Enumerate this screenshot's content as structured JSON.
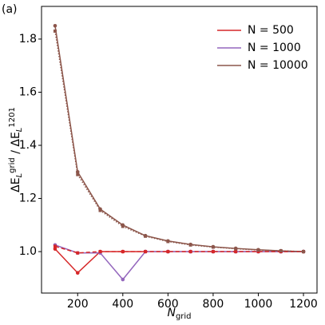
{
  "chart_data": {
    "type": "line",
    "panel_label": "(a)",
    "x_label": [
      "N",
      "grid"
    ],
    "y_label": [
      "ΔE",
      "L",
      "grid",
      " / ΔE",
      "L",
      "1201"
    ],
    "x": [
      100,
      200,
      300,
      400,
      500,
      600,
      700,
      800,
      900,
      1000,
      1100,
      1200
    ],
    "series": [
      {
        "name": "N = 500",
        "color": "#d62728",
        "dash": "solid",
        "values": [
          1.01,
          0.92,
          1.0,
          1.0,
          1.0,
          1.0,
          1.0,
          1.0,
          1.0,
          1.0,
          1.0,
          1.0
        ]
      },
      {
        "name": "N = 1000",
        "color": "#9467bd",
        "dash": "solid",
        "values": [
          1.025,
          0.995,
          0.995,
          0.895,
          1.0,
          1.0,
          1.0,
          1.0,
          1.0,
          1.0,
          1.0,
          1.0
        ]
      },
      {
        "name": "N = 10000",
        "color": "#8c564b",
        "dash": "solid",
        "values": [
          1.85,
          1.3,
          1.16,
          1.1,
          1.06,
          1.04,
          1.027,
          1.018,
          1.012,
          1.007,
          1.003,
          1.0
        ]
      },
      {
        "color": "#d62728",
        "dash": "dashed",
        "values": [
          1.02,
          0.995,
          1.0,
          1.0,
          1.0,
          1.0,
          1.0,
          1.0,
          1.0,
          1.0,
          1.0,
          1.0
        ]
      },
      {
        "color": "#8c564b",
        "dash": "dotted",
        "values": [
          1.83,
          1.29,
          1.155,
          1.095,
          1.058,
          1.038,
          1.025,
          1.017,
          1.011,
          1.006,
          1.003,
          1.0
        ]
      }
    ],
    "xlim": [
      40,
      1260
    ],
    "ylim": [
      0.844,
      1.923
    ],
    "xticks": [
      200,
      400,
      600,
      800,
      1000,
      1200
    ],
    "yticks": [
      {
        "value": 1,
        "label": "1.0"
      },
      1.2,
      1.4,
      1.6,
      1.8
    ],
    "legend": "upper right"
  }
}
